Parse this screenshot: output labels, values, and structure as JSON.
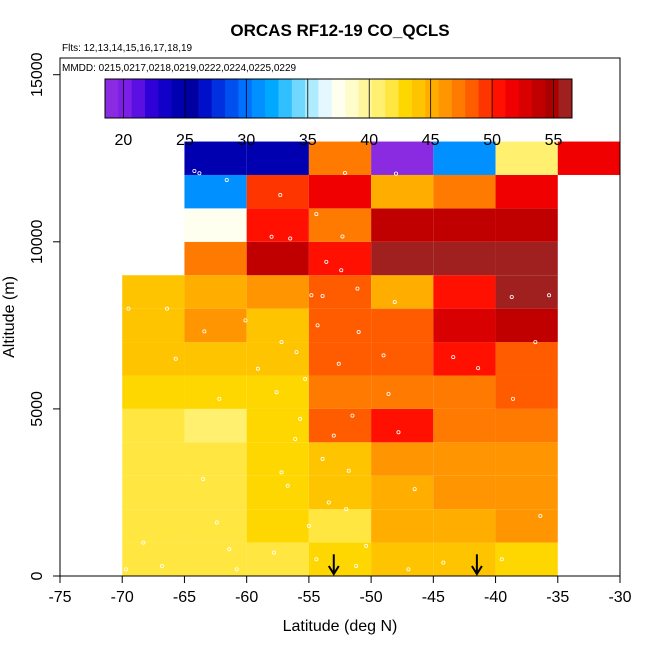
{
  "chart_data": {
    "type": "heatmap",
    "title": "ORCAS RF12-19 CO_QCLS",
    "flights_label": "Flts: 12,13,14,15,16,17,18,19",
    "dates_label": "MMDD: 0215,0217,0218,0219,0222,0224,0225,0229",
    "xlabel": "Latitude (deg N)",
    "ylabel": "Altitude (m)",
    "xlim": [
      -75,
      -30
    ],
    "ylim": [
      0,
      15500
    ],
    "x_ticks": [
      -75,
      -70,
      -65,
      -60,
      -55,
      -50,
      -45,
      -40,
      -35,
      -30
    ],
    "x_tick_labels": [
      "-75",
      "-70",
      "-65",
      "-60",
      "-55",
      "-50",
      "-45",
      "-40",
      "-35",
      "-30"
    ],
    "y_ticks": [
      0,
      5000,
      10000,
      15000
    ],
    "y_tick_labels": [
      "0",
      "5000",
      "10000",
      "15000"
    ],
    "colorbar": {
      "range": [
        18.5,
        56.5
      ],
      "ticks": [
        20,
        25,
        30,
        35,
        40,
        45,
        50,
        55
      ],
      "tick_labels": [
        "20",
        "25",
        "30",
        "35",
        "40",
        "45",
        "50",
        "55"
      ],
      "colors": [
        "#8a2be2",
        "#7a1ee8",
        "#5a10e0",
        "#3000d8",
        "#1000c8",
        "#0000b0",
        "#0000a0",
        "#0010c8",
        "#0030e0",
        "#0050f0",
        "#0070ff",
        "#0090ff",
        "#00a8ff",
        "#30c0ff",
        "#70d8ff",
        "#b0ecff",
        "#e6f8ff",
        "#fffff0",
        "#fffccc",
        "#fff59d",
        "#fff070",
        "#ffe640",
        "#ffd700",
        "#ffc400",
        "#ffae00",
        "#ff9500",
        "#ff7a00",
        "#ff5c00",
        "#ff3500",
        "#ff1000",
        "#f00000",
        "#d80000",
        "#c00000",
        "#ac0000",
        "#a02020"
      ]
    },
    "lat_bins": [
      -70,
      -65,
      -60,
      -55,
      -50,
      -45,
      -40,
      -35
    ],
    "alt_bin_size": 1000,
    "cells": [
      {
        "lat": -70,
        "alt": 0,
        "co": 42
      },
      {
        "lat": -65,
        "alt": 0,
        "co": 42
      },
      {
        "lat": -60,
        "alt": 0,
        "co": 42
      },
      {
        "lat": -55,
        "alt": 0,
        "co": 43
      },
      {
        "lat": -50,
        "alt": 0,
        "co": 44
      },
      {
        "lat": -45,
        "alt": 0,
        "co": 44
      },
      {
        "lat": -40,
        "alt": 0,
        "co": 43
      },
      {
        "lat": -70,
        "alt": 1000,
        "co": 42
      },
      {
        "lat": -65,
        "alt": 1000,
        "co": 42
      },
      {
        "lat": -60,
        "alt": 1000,
        "co": 43
      },
      {
        "lat": -55,
        "alt": 1000,
        "co": 42
      },
      {
        "lat": -50,
        "alt": 1000,
        "co": 45
      },
      {
        "lat": -45,
        "alt": 1000,
        "co": 45
      },
      {
        "lat": -40,
        "alt": 1000,
        "co": 46
      },
      {
        "lat": -70,
        "alt": 2000,
        "co": 42
      },
      {
        "lat": -65,
        "alt": 2000,
        "co": 42
      },
      {
        "lat": -60,
        "alt": 2000,
        "co": 43
      },
      {
        "lat": -55,
        "alt": 2000,
        "co": 44
      },
      {
        "lat": -50,
        "alt": 2000,
        "co": 45
      },
      {
        "lat": -45,
        "alt": 2000,
        "co": 46
      },
      {
        "lat": -40,
        "alt": 2000,
        "co": 46
      },
      {
        "lat": -70,
        "alt": 3000,
        "co": 42
      },
      {
        "lat": -65,
        "alt": 3000,
        "co": 42
      },
      {
        "lat": -60,
        "alt": 3000,
        "co": 43
      },
      {
        "lat": -55,
        "alt": 3000,
        "co": 44
      },
      {
        "lat": -50,
        "alt": 3000,
        "co": 46
      },
      {
        "lat": -45,
        "alt": 3000,
        "co": 46
      },
      {
        "lat": -40,
        "alt": 3000,
        "co": 46
      },
      {
        "lat": -70,
        "alt": 4000,
        "co": 42
      },
      {
        "lat": -65,
        "alt": 4000,
        "co": 41
      },
      {
        "lat": -60,
        "alt": 4000,
        "co": 43
      },
      {
        "lat": -55,
        "alt": 4000,
        "co": 48
      },
      {
        "lat": -50,
        "alt": 4000,
        "co": 51
      },
      {
        "lat": -45,
        "alt": 4000,
        "co": 47
      },
      {
        "lat": -40,
        "alt": 4000,
        "co": 47
      },
      {
        "lat": -70,
        "alt": 5000,
        "co": 43
      },
      {
        "lat": -65,
        "alt": 5000,
        "co": 43
      },
      {
        "lat": -60,
        "alt": 5000,
        "co": 43
      },
      {
        "lat": -55,
        "alt": 5000,
        "co": 47
      },
      {
        "lat": -50,
        "alt": 5000,
        "co": 47
      },
      {
        "lat": -45,
        "alt": 5000,
        "co": 47
      },
      {
        "lat": -40,
        "alt": 5000,
        "co": 48
      },
      {
        "lat": -70,
        "alt": 6000,
        "co": 44
      },
      {
        "lat": -65,
        "alt": 6000,
        "co": 44
      },
      {
        "lat": -60,
        "alt": 6000,
        "co": 44
      },
      {
        "lat": -55,
        "alt": 6000,
        "co": 48
      },
      {
        "lat": -50,
        "alt": 6000,
        "co": 48
      },
      {
        "lat": -45,
        "alt": 6000,
        "co": 51
      },
      {
        "lat": -40,
        "alt": 6000,
        "co": 48
      },
      {
        "lat": -70,
        "alt": 7000,
        "co": 44
      },
      {
        "lat": -65,
        "alt": 7000,
        "co": 46
      },
      {
        "lat": -60,
        "alt": 7000,
        "co": 44
      },
      {
        "lat": -55,
        "alt": 7000,
        "co": 48
      },
      {
        "lat": -50,
        "alt": 7000,
        "co": 48
      },
      {
        "lat": -45,
        "alt": 7000,
        "co": 53
      },
      {
        "lat": -40,
        "alt": 7000,
        "co": 54
      },
      {
        "lat": -70,
        "alt": 8000,
        "co": 44
      },
      {
        "lat": -65,
        "alt": 8000,
        "co": 45
      },
      {
        "lat": -60,
        "alt": 8000,
        "co": 46
      },
      {
        "lat": -55,
        "alt": 8000,
        "co": 48
      },
      {
        "lat": -50,
        "alt": 8000,
        "co": 45
      },
      {
        "lat": -45,
        "alt": 8000,
        "co": 51
      },
      {
        "lat": -40,
        "alt": 8000,
        "co": 56
      },
      {
        "lat": -65,
        "alt": 9000,
        "co": 47
      },
      {
        "lat": -60,
        "alt": 9000,
        "co": 54
      },
      {
        "lat": -55,
        "alt": 9000,
        "co": 51
      },
      {
        "lat": -50,
        "alt": 9000,
        "co": 56
      },
      {
        "lat": -45,
        "alt": 9000,
        "co": 56
      },
      {
        "lat": -40,
        "alt": 9000,
        "co": 56
      },
      {
        "lat": -65,
        "alt": 10000,
        "co": 37
      },
      {
        "lat": -60,
        "alt": 10000,
        "co": 51
      },
      {
        "lat": -55,
        "alt": 10000,
        "co": 47
      },
      {
        "lat": -50,
        "alt": 10000,
        "co": 54
      },
      {
        "lat": -45,
        "alt": 10000,
        "co": 54
      },
      {
        "lat": -40,
        "alt": 10000,
        "co": 54
      },
      {
        "lat": -65,
        "alt": 11000,
        "co": 31
      },
      {
        "lat": -60,
        "alt": 11000,
        "co": 49
      },
      {
        "lat": -55,
        "alt": 11000,
        "co": 52
      },
      {
        "lat": -50,
        "alt": 11000,
        "co": 45
      },
      {
        "lat": -45,
        "alt": 11000,
        "co": 47
      },
      {
        "lat": -40,
        "alt": 11000,
        "co": 52
      },
      {
        "lat": -65,
        "alt": 12000,
        "co": 24
      },
      {
        "lat": -60,
        "alt": 12000,
        "co": 25
      },
      {
        "lat": -55,
        "alt": 12000,
        "co": 47
      },
      {
        "lat": -50,
        "alt": 12000,
        "co": 19
      },
      {
        "lat": -45,
        "alt": 12000,
        "co": 31
      },
      {
        "lat": -40,
        "alt": 12000,
        "co": 41
      },
      {
        "lat": -35,
        "alt": 12000,
        "co": 52
      }
    ],
    "arrows": [
      {
        "lat": -53,
        "alt": 500
      },
      {
        "lat": -41.5,
        "alt": 500
      }
    ],
    "sample_points": [
      [
        -64.2,
        12120
      ],
      [
        -63.8,
        12050
      ],
      [
        -61.6,
        11850
      ],
      [
        -57.3,
        11400
      ],
      [
        -52.1,
        12060
      ],
      [
        -48.0,
        12040
      ],
      [
        -58.0,
        10150
      ],
      [
        -56.5,
        10100
      ],
      [
        -54.4,
        10830
      ],
      [
        -52.3,
        10160
      ],
      [
        -53.6,
        9400
      ],
      [
        -52.4,
        9150
      ],
      [
        -54.8,
        8400
      ],
      [
        -51.1,
        8600
      ],
      [
        -48.1,
        8200
      ],
      [
        -53.9,
        8380
      ],
      [
        -38.7,
        8350
      ],
      [
        -35.7,
        8400
      ],
      [
        -66.4,
        8000
      ],
      [
        -69.5,
        8000
      ],
      [
        -63.4,
        7320
      ],
      [
        -60.1,
        7650
      ],
      [
        -57.2,
        7000
      ],
      [
        -56.0,
        6700
      ],
      [
        -54.3,
        7500
      ],
      [
        -51.0,
        7300
      ],
      [
        -49.0,
        6600
      ],
      [
        -41.4,
        6220
      ],
      [
        -36.8,
        7000
      ],
      [
        -43.4,
        6550
      ],
      [
        -65.7,
        6500
      ],
      [
        -59.1,
        6200
      ],
      [
        -55.3,
        5900
      ],
      [
        -52.6,
        6350
      ],
      [
        -48.6,
        5450
      ],
      [
        -38.6,
        5300
      ],
      [
        -62.2,
        5300
      ],
      [
        -57.6,
        5500
      ],
      [
        -55.7,
        4700
      ],
      [
        -53.0,
        4200
      ],
      [
        -51.5,
        4800
      ],
      [
        -47.8,
        4300
      ],
      [
        -56.1,
        4100
      ],
      [
        -53.9,
        3500
      ],
      [
        -51.8,
        3150
      ],
      [
        -57.2,
        3100
      ],
      [
        -63.5,
        2900
      ],
      [
        -56.7,
        2700
      ],
      [
        -53.4,
        2200
      ],
      [
        -52.0,
        2000
      ],
      [
        -46.5,
        2600
      ],
      [
        -36.4,
        1800
      ],
      [
        -62.4,
        1600
      ],
      [
        -55.0,
        1500
      ],
      [
        -68.3,
        1000
      ],
      [
        -61.4,
        800
      ],
      [
        -57.8,
        700
      ],
      [
        -54.4,
        500
      ],
      [
        -51.2,
        300
      ],
      [
        -47.0,
        200
      ],
      [
        -69.7,
        200
      ],
      [
        -66.8,
        300
      ],
      [
        -60.8,
        200
      ],
      [
        -50.4,
        900
      ],
      [
        -44.2,
        400
      ],
      [
        -39.5,
        500
      ]
    ],
    "grid": false
  }
}
